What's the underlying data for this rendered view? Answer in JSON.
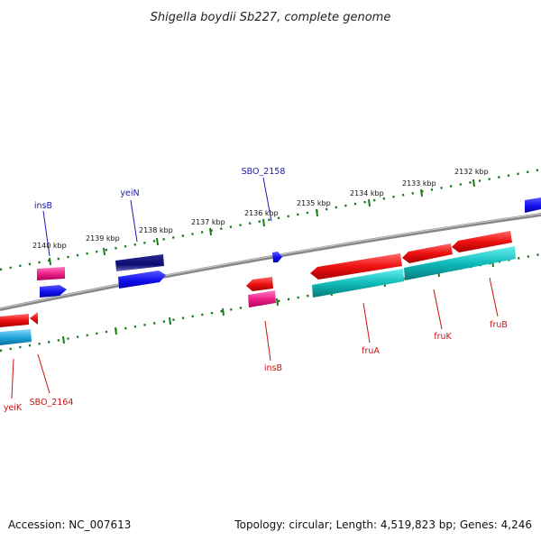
{
  "title": "Shigella boydii Sb227, complete genome",
  "footer": {
    "accession": "Accession: NC_007613",
    "summary": "Topology: circular; Length: 4,519,823 bp; Genes: 4,246"
  },
  "ruler_labels": {
    "upper": [
      "2140 kbp",
      "2139 kbp",
      "2138 kbp",
      "2137 kbp",
      "2136 kbp",
      "2135 kbp",
      "2134 kbp",
      "2133 kbp",
      "2132 kbp"
    ]
  },
  "gene_labels": {
    "top": [
      "insB",
      "yeiN",
      "SBO_2158"
    ],
    "bottom": [
      "yeiK",
      "SBO_2164",
      "insB",
      "fruA",
      "fruK",
      "fruB"
    ]
  },
  "colors": {
    "forward_cds": "#1010ee",
    "forward_dark": "#0a0a70",
    "reverse_cds": "#ee1111",
    "pseudo": "#ee2288",
    "reverse_teal": "#11bbbb",
    "light_blue": "#22aadd",
    "ruler": "#1a7a1a",
    "backbone": "#888888",
    "label_blue": "#1a1aaa",
    "label_red": "#cc1111"
  }
}
